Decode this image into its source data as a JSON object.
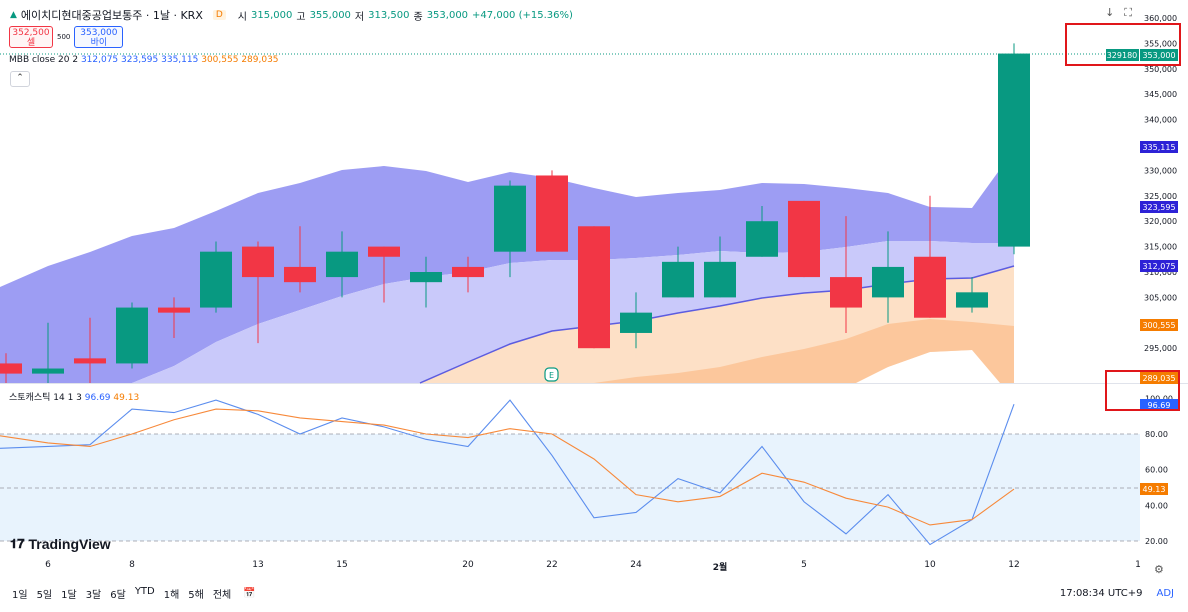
{
  "header": {
    "symbol_title": "에이치디현대중공업보통주 · 1날 · KRX",
    "badge": "D",
    "open_label": "시",
    "open_value": "315,000",
    "high_label": "고",
    "high_value": "355,000",
    "low_label": "저",
    "low_value": "313,500",
    "close_label": "종",
    "close_value": "353,000",
    "change": "+47,000 (+15.36%)"
  },
  "trade": {
    "sell_price": "352,500",
    "sell_label": "셀",
    "spread": "500",
    "buy_price": "353,000",
    "buy_label": "바이"
  },
  "mbb": {
    "name": "MBB close 20 2",
    "basis": "312,075",
    "upper": "323,595",
    "upper2": "335,115",
    "lower": "300,555",
    "lower2": "289,035"
  },
  "stoch": {
    "name": "스토캐스틱 14 1 3",
    "k": "96.69",
    "d": "49.13"
  },
  "price_axis": {
    "ticks": [
      "360,000",
      "355,000",
      "350,000",
      "345,000",
      "340,000",
      "335,000",
      "330,000",
      "325,000",
      "320,000",
      "315,000",
      "310,000",
      "305,000",
      "300,000",
      "295,000"
    ],
    "last_volume": "329180",
    "last_price": "353,000",
    "label_upper2": "335,115",
    "label_upper": "323,595",
    "label_basis": "312,075",
    "label_lower": "300,555",
    "label_lower2": "289,035"
  },
  "stoch_axis": {
    "ticks": [
      "100.00",
      "80.00",
      "60.00",
      "40.00",
      "20.00"
    ],
    "label_k": "96.69",
    "label_d": "49.13"
  },
  "x_axis": {
    "labels": [
      "6",
      "8",
      "13",
      "15",
      "20",
      "22",
      "24",
      "2월",
      "5",
      "10",
      "12",
      "1"
    ]
  },
  "colors": {
    "up": "#089981",
    "down": "#f23645",
    "band_outer": "#9c9cf2",
    "band_mid": "#c8c8fa",
    "band_low": "#fcd6b4",
    "band_low2": "#fcc79c",
    "basis": "#5c5ce0",
    "stoch_k": "#5b8dee",
    "stoch_d": "#f7893a",
    "stoch_bg": "#e3f2fd",
    "highlight": "#e0161a"
  },
  "chart_data": {
    "type": "candlestick",
    "x": [
      "1/3",
      "1/6",
      "1/7",
      "1/8",
      "1/9",
      "1/10",
      "1/13",
      "1/14",
      "1/15",
      "1/16",
      "1/17",
      "1/20",
      "1/21",
      "1/22",
      "1/23",
      "1/24",
      "1/31",
      "2/3",
      "2/4",
      "2/5",
      "2/6",
      "2/7",
      "2/10",
      "2/11",
      "2/12"
    ],
    "ohlc": [
      [
        292000,
        294000,
        285000,
        290000
      ],
      [
        290000,
        300000,
        286000,
        291000
      ],
      [
        293000,
        301000,
        286000,
        292000
      ],
      [
        292000,
        304000,
        291000,
        303000
      ],
      [
        303000,
        305000,
        297000,
        302000
      ],
      [
        303000,
        316000,
        302000,
        314000
      ],
      [
        315000,
        316000,
        296000,
        309000
      ],
      [
        311000,
        319000,
        306000,
        308000
      ],
      [
        309000,
        318000,
        305000,
        314000
      ],
      [
        315000,
        315000,
        304000,
        313000
      ],
      [
        308000,
        313000,
        303000,
        310000
      ],
      [
        311000,
        313000,
        306000,
        309000
      ],
      [
        314000,
        328000,
        309000,
        327000
      ],
      [
        329000,
        330000,
        314000,
        314000
      ],
      [
        319000,
        319000,
        295000,
        295000
      ],
      [
        298000,
        306000,
        295000,
        302000
      ],
      [
        305000,
        315000,
        305000,
        312000
      ],
      [
        305000,
        317000,
        305000,
        312000
      ],
      [
        313000,
        323000,
        313000,
        320000
      ],
      [
        324000,
        324000,
        309000,
        309000
      ],
      [
        309000,
        321000,
        298000,
        303000
      ],
      [
        305000,
        318000,
        300000,
        311000
      ],
      [
        313000,
        325000,
        301000,
        301000
      ],
      [
        303000,
        309000,
        302000,
        306000
      ],
      [
        315000,
        355000,
        313500,
        353000
      ]
    ],
    "stochastic": {
      "k": [
        72,
        73,
        74,
        94,
        92,
        99,
        91,
        80,
        89,
        84,
        77,
        73,
        99,
        68,
        33,
        36,
        55,
        47,
        73,
        42,
        24,
        46,
        18,
        32,
        96.69
      ],
      "d": [
        79,
        75,
        73,
        80,
        88,
        94,
        93,
        89,
        87,
        85,
        80,
        78,
        83,
        80,
        66,
        46,
        42,
        45,
        58,
        53,
        44,
        39,
        29,
        32,
        49.13
      ]
    },
    "y_range": [
      290000,
      360000
    ]
  }
}
